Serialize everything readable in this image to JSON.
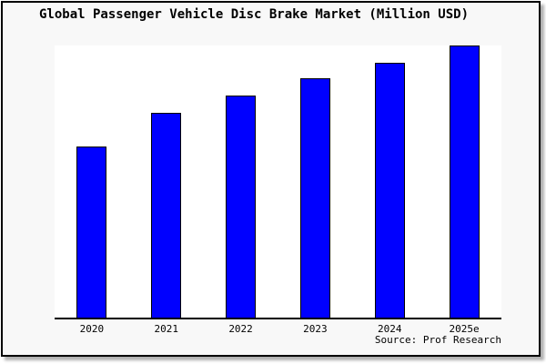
{
  "chart": {
    "title": "Global Passenger Vehicle Disc Brake Market (Million USD)",
    "source": "Source: Prof Research"
  },
  "chart_data": {
    "type": "bar",
    "title": "Global Passenger Vehicle Disc Brake Market (Million USD)",
    "categories": [
      "2020",
      "2021",
      "2022",
      "2023",
      "2024",
      "2025e"
    ],
    "values": [
      62.9,
      75.2,
      81.5,
      87.8,
      93.8,
      100
    ],
    "value_note": "No y-axis, gridlines or data labels are shown in the image; values are relative bar heights with 2025e = 100.",
    "xlabel": "",
    "ylabel": "",
    "ylim": [
      0,
      100
    ],
    "grid": false,
    "legend": "none",
    "bar_color": "#0000ff",
    "bar_border_color": "#000000",
    "source_label": "Source: Prof Research"
  },
  "colors": {
    "canvas_background": "#f8f8f8",
    "plot_background": "#ffffff",
    "frame_border": "#000000",
    "axis": "#000000",
    "text": "#000000",
    "bar_fill": "#0000ff",
    "shadow": "#b0b0b0"
  }
}
